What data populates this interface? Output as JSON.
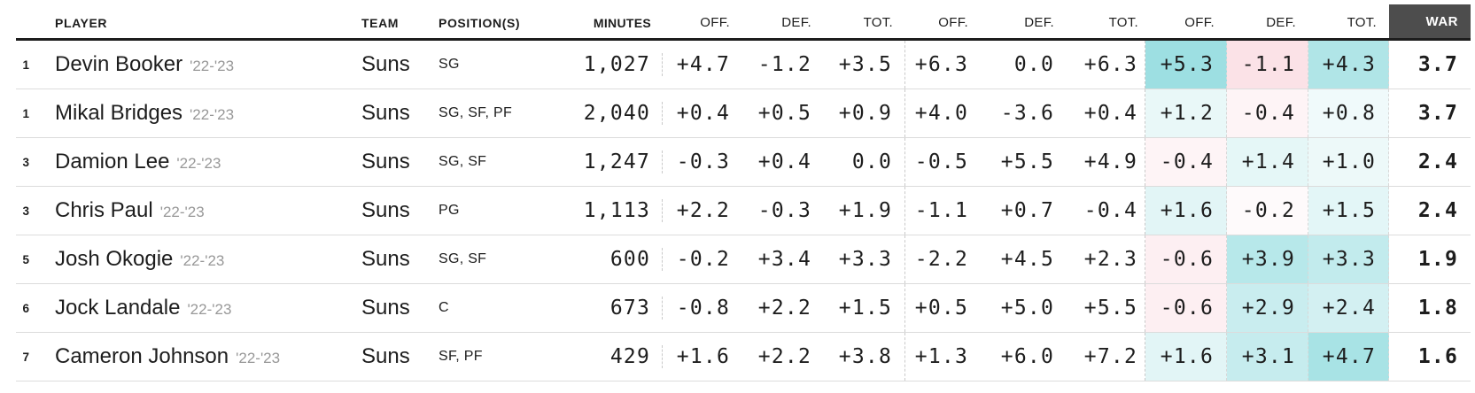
{
  "chart_data": {
    "type": "table",
    "headers": {
      "player": "PLAYER",
      "team": "TEAM",
      "positions": "POSITION(S)",
      "minutes": "MINUTES",
      "off": "OFF.",
      "def": "DEF.",
      "tot": "TOT.",
      "war": "WAR"
    },
    "colors": {
      "positive_rgb": "148,220,223",
      "negative_rgb": "236,101,130",
      "scale_max": 5.8,
      "war_header_bg": "#4d4d4d",
      "header_line": "#1d1d1d",
      "row_line": "#dcdcdc",
      "season_text": "#989898"
    },
    "rows": [
      {
        "rank": "1",
        "player": "Devin Booker",
        "season": "'22-'23",
        "team": "Suns",
        "positions": "SG",
        "minutes": "1,027",
        "stats": [
          "+4.7",
          "-1.2",
          "+3.5",
          "+6.3",
          "0.0",
          "+6.3",
          "+5.3",
          "-1.1",
          "+4.3"
        ],
        "war": "3.7"
      },
      {
        "rank": "1",
        "player": "Mikal Bridges",
        "season": "'22-'23",
        "team": "Suns",
        "positions": "SG, SF, PF",
        "minutes": "2,040",
        "stats": [
          "+0.4",
          "+0.5",
          "+0.9",
          "+4.0",
          "-3.6",
          "+0.4",
          "+1.2",
          "-0.4",
          "+0.8"
        ],
        "war": "3.7"
      },
      {
        "rank": "3",
        "player": "Damion Lee",
        "season": "'22-'23",
        "team": "Suns",
        "positions": "SG, SF",
        "minutes": "1,247",
        "stats": [
          "-0.3",
          "+0.4",
          "0.0",
          "-0.5",
          "+5.5",
          "+4.9",
          "-0.4",
          "+1.4",
          "+1.0"
        ],
        "war": "2.4"
      },
      {
        "rank": "3",
        "player": "Chris Paul",
        "season": "'22-'23",
        "team": "Suns",
        "positions": "PG",
        "minutes": "1,113",
        "stats": [
          "+2.2",
          "-0.3",
          "+1.9",
          "-1.1",
          "+0.7",
          "-0.4",
          "+1.6",
          "-0.2",
          "+1.5"
        ],
        "war": "2.4"
      },
      {
        "rank": "5",
        "player": "Josh Okogie",
        "season": "'22-'23",
        "team": "Suns",
        "positions": "SG, SF",
        "minutes": "600",
        "stats": [
          "-0.2",
          "+3.4",
          "+3.3",
          "-2.2",
          "+4.5",
          "+2.3",
          "-0.6",
          "+3.9",
          "+3.3"
        ],
        "war": "1.9"
      },
      {
        "rank": "6",
        "player": "Jock Landale",
        "season": "'22-'23",
        "team": "Suns",
        "positions": "C",
        "minutes": "673",
        "stats": [
          "-0.8",
          "+2.2",
          "+1.5",
          "+0.5",
          "+5.0",
          "+5.5",
          "-0.6",
          "+2.9",
          "+2.4"
        ],
        "war": "1.8"
      },
      {
        "rank": "7",
        "player": "Cameron Johnson",
        "season": "'22-'23",
        "team": "Suns",
        "positions": "SF, PF",
        "minutes": "429",
        "stats": [
          "+1.6",
          "+2.2",
          "+3.8",
          "+1.3",
          "+6.0",
          "+7.2",
          "+1.6",
          "+3.1",
          "+4.7"
        ],
        "war": "1.6"
      }
    ]
  }
}
